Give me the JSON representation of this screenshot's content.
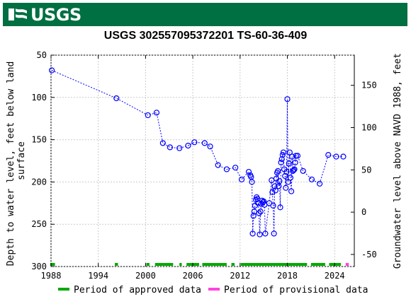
{
  "header": {
    "logo_text": "USGS",
    "logo_icon": "usgs-wave-icon",
    "banner_color": "#006f41"
  },
  "chart_data": {
    "type": "scatter",
    "title": "USGS 302557095372201 TS-60-36-409",
    "ylabel": "Depth to water level, feet below land surface",
    "y2label": "Groundwater level above NAVD 1988, feet",
    "xlim": [
      1988,
      2026.5
    ],
    "ylim": [
      300,
      50
    ],
    "y2lim": [
      -64.3,
      185.7
    ],
    "x_ticks": [
      "1988",
      "1994",
      "2000",
      "2006",
      "2012",
      "2018",
      "2024"
    ],
    "y_ticks": [
      "50",
      "100",
      "150",
      "200",
      "250",
      "300"
    ],
    "y2_ticks": [
      "150",
      "100",
      "50",
      "0",
      "-50"
    ],
    "series": [
      {
        "color": "#0000ff",
        "x": [
          1988.1,
          1996.3,
          2000.3,
          2001.4,
          2002.2,
          2003.1,
          2004.3,
          2005.4,
          2006.2,
          2007.5,
          2008.2,
          2009.2,
          2010.3,
          2011.4,
          2012.2,
          2013.1,
          2013.3,
          2013.4,
          2013.5,
          2013.6,
          2013.7,
          2013.8,
          2013.9,
          2014.0,
          2014.1,
          2014.2,
          2014.3,
          2014.4,
          2014.5,
          2014.6,
          2014.7,
          2014.8,
          2014.9,
          2015.0,
          2015.1,
          2015.2,
          2015.7,
          2016.0,
          2016.1,
          2016.2,
          2016.3,
          2016.4,
          2016.5,
          2016.6,
          2016.7,
          2016.8,
          2016.9,
          2017.0,
          2017.1,
          2017.2,
          2017.3,
          2017.4,
          2017.5,
          2017.6,
          2017.7,
          2017.8,
          2017.9,
          2018.0,
          2018.1,
          2018.2,
          2018.3,
          2018.4,
          2018.5,
          2018.6,
          2018.7,
          2018.8,
          2018.9,
          2019.0,
          2019.1,
          2019.3,
          2020.0,
          2021.1,
          2022.1,
          2023.2,
          2024.2,
          2025.1
        ],
        "y": [
          68,
          101,
          121,
          118,
          154,
          159,
          160,
          157,
          153,
          154,
          158,
          180,
          185,
          183,
          197,
          188,
          192,
          194,
          200,
          261,
          240,
          235,
          228,
          221,
          218,
          220,
          225,
          237,
          262,
          235,
          226,
          222,
          224,
          223,
          227,
          261,
          225,
          198,
          212,
          228,
          261,
          205,
          210,
          196,
          189,
          187,
          205,
          199,
          230,
          177,
          173,
          168,
          165,
          185,
          193,
          207,
          188,
          102,
          200,
          178,
          165,
          195,
          211,
          170,
          187,
          186,
          185,
          177,
          169,
          169,
          187,
          197,
          202,
          168,
          170,
          170
        ]
      }
    ],
    "approved_periods": [
      [
        1987.9,
        1988.5
      ],
      [
        1996.1,
        1996.5
      ],
      [
        2000.1,
        2000.5
      ],
      [
        2001.2,
        2003.5
      ],
      [
        2004.3,
        2004.6
      ],
      [
        2005.2,
        2006.8
      ],
      [
        2007.2,
        2010.3
      ],
      [
        2010.9,
        2011.3
      ],
      [
        2012.1,
        2020.5
      ],
      [
        2021.0,
        2022.8
      ],
      [
        2023.3,
        2024.8
      ]
    ],
    "provisional_periods": [
      [
        2025.4,
        2025.8
      ]
    ],
    "legend": {
      "approved_label": "Period of approved data",
      "provisional_label": "Period of provisional data",
      "approved_color": "#00aa00",
      "provisional_color": "#ff44dd",
      "placement": "bottom"
    },
    "grid": true
  }
}
